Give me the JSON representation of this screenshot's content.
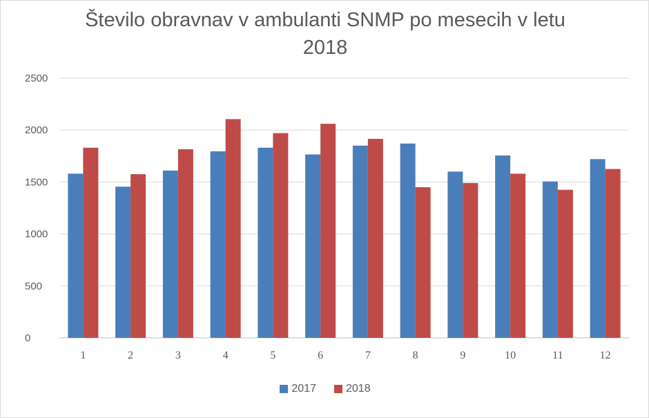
{
  "chart_data": {
    "type": "bar",
    "title": "Število obravnav v ambulanti SNMP po mesecih v letu 2018",
    "title_lines": [
      "Število obravnav v ambulanti SNMP po mesecih v letu",
      "2018"
    ],
    "categories": [
      "1",
      "2",
      "3",
      "4",
      "5",
      "6",
      "7",
      "8",
      "9",
      "10",
      "11",
      "12"
    ],
    "series": [
      {
        "name": "2017",
        "color": "#4a7ebb",
        "values": [
          1580,
          1455,
          1610,
          1795,
          1830,
          1765,
          1850,
          1870,
          1600,
          1755,
          1505,
          1720
        ]
      },
      {
        "name": "2018",
        "color": "#be4b48",
        "values": [
          1830,
          1575,
          1815,
          2105,
          1970,
          2060,
          1915,
          1450,
          1490,
          1580,
          1425,
          1625
        ]
      }
    ],
    "ylim": [
      0,
      2500
    ],
    "yticks": [
      "0",
      "500",
      "1000",
      "1500",
      "2000",
      "2500"
    ],
    "xlabel": "",
    "ylabel": "",
    "grid": true,
    "legend": "bottom"
  }
}
